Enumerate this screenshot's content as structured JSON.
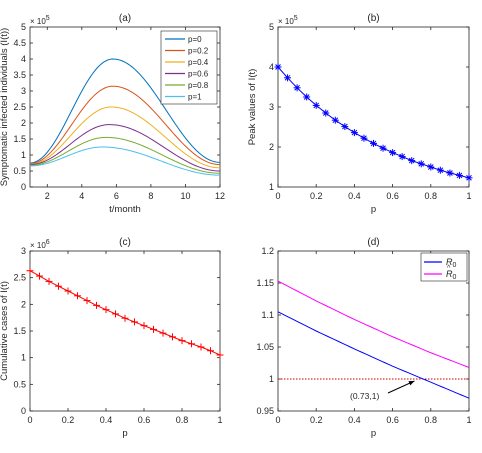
{
  "chart_data": [
    {
      "type": "line",
      "panel_label": "(a)",
      "xlabel": "t/month",
      "ylabel": "Symptomatic infected individuals (I(t))",
      "xlim": [
        1,
        12
      ],
      "ylim": [
        0,
        5
      ],
      "exponent": "× 10",
      "exponent_power": "5",
      "xticks": [
        "2",
        "4",
        "6",
        "8",
        "10",
        "12"
      ],
      "yticks": [
        "0",
        "0.5",
        "1",
        "1.5",
        "2",
        "2.5",
        "3",
        "3.5",
        "4",
        "4.5",
        "5"
      ],
      "legend": "top-right",
      "series": [
        {
          "name": "p=0",
          "color": "#0072BD",
          "peak_t": 5.8,
          "peak": 4.0,
          "start": 0.75,
          "end": 0.77
        },
        {
          "name": "p=0.2",
          "color": "#D95319",
          "peak_t": 5.8,
          "peak": 3.15,
          "start": 0.73,
          "end": 0.7
        },
        {
          "name": "p=0.4",
          "color": "#EDB120",
          "peak_t": 5.7,
          "peak": 2.5,
          "start": 0.71,
          "end": 0.6
        },
        {
          "name": "p=0.6",
          "color": "#7E2F8E",
          "peak_t": 5.6,
          "peak": 1.95,
          "start": 0.7,
          "end": 0.5
        },
        {
          "name": "p=0.8",
          "color": "#77AC30",
          "peak_t": 5.4,
          "peak": 1.55,
          "start": 0.68,
          "end": 0.43
        },
        {
          "name": "p=1",
          "color": "#4DBEEE",
          "peak_t": 5.2,
          "peak": 1.25,
          "start": 0.66,
          "end": 0.37
        }
      ]
    },
    {
      "type": "line",
      "panel_label": "(b)",
      "xlabel": "p",
      "ylabel": "Peak values of I(t)",
      "xlim": [
        0,
        1
      ],
      "ylim": [
        1,
        5
      ],
      "exponent": "× 10",
      "exponent_power": "5",
      "xticks": [
        "0",
        "0.2",
        "0.4",
        "0.6",
        "0.8",
        "1"
      ],
      "yticks": [
        "1",
        "2",
        "3",
        "4",
        "5"
      ],
      "marker": "*",
      "color": "#0000FF",
      "x": [
        0,
        0.05,
        0.1,
        0.15,
        0.2,
        0.25,
        0.3,
        0.35,
        0.4,
        0.45,
        0.5,
        0.55,
        0.6,
        0.65,
        0.7,
        0.75,
        0.8,
        0.85,
        0.9,
        0.95,
        1.0
      ],
      "y": [
        4.0,
        3.73,
        3.48,
        3.25,
        3.04,
        2.85,
        2.67,
        2.51,
        2.36,
        2.22,
        2.09,
        1.97,
        1.86,
        1.76,
        1.66,
        1.58,
        1.5,
        1.42,
        1.35,
        1.29,
        1.23
      ]
    },
    {
      "type": "line",
      "panel_label": "(c)",
      "xlabel": "p",
      "ylabel": "Cumulative cases of I(t)",
      "xlim": [
        0,
        1
      ],
      "ylim": [
        0,
        3
      ],
      "exponent": "× 10",
      "exponent_power": "6",
      "xticks": [
        "0",
        "0.2",
        "0.4",
        "0.6",
        "0.8",
        "1"
      ],
      "yticks": [
        "0",
        "0.5",
        "1",
        "1.5",
        "2",
        "2.5",
        "3"
      ],
      "marker": "+",
      "color": "#FF0000",
      "x": [
        0,
        0.05,
        0.1,
        0.15,
        0.2,
        0.25,
        0.3,
        0.35,
        0.4,
        0.45,
        0.5,
        0.55,
        0.6,
        0.65,
        0.7,
        0.75,
        0.8,
        0.85,
        0.9,
        0.95,
        1.0
      ],
      "y": [
        2.63,
        2.53,
        2.43,
        2.34,
        2.25,
        2.16,
        2.07,
        1.98,
        1.9,
        1.82,
        1.74,
        1.67,
        1.6,
        1.53,
        1.46,
        1.39,
        1.32,
        1.26,
        1.2,
        1.13,
        1.05
      ]
    },
    {
      "type": "line",
      "panel_label": "(d)",
      "xlabel": "p",
      "xlim": [
        0,
        1
      ],
      "ylim": [
        0.95,
        1.2
      ],
      "xticks": [
        "0",
        "0.2",
        "0.4",
        "0.6",
        "0.8",
        "1"
      ],
      "yticks": [
        "0.95",
        "1",
        "1.05",
        "1.1",
        "1.15",
        "1.2"
      ],
      "legend": "top-right",
      "series": [
        {
          "name": "R",
          "subscript": "0",
          "accent": "",
          "color": "#0000FF",
          "x": [
            0,
            0.2,
            0.4,
            0.6,
            0.8,
            1.0
          ],
          "y": [
            1.105,
            1.075,
            1.047,
            1.02,
            0.995,
            0.97
          ]
        },
        {
          "name": "R",
          "subscript": "0",
          "accent": "^",
          "color": "#FF00FF",
          "x": [
            0,
            0.2,
            0.4,
            0.6,
            0.8,
            1.0
          ],
          "y": [
            1.153,
            1.122,
            1.093,
            1.066,
            1.041,
            1.018
          ]
        }
      ],
      "reference_line": {
        "y": 1,
        "color": "#CC0000"
      },
      "annotation": {
        "text": "(0.73,1)",
        "x": 0.73,
        "y": 1
      }
    }
  ]
}
